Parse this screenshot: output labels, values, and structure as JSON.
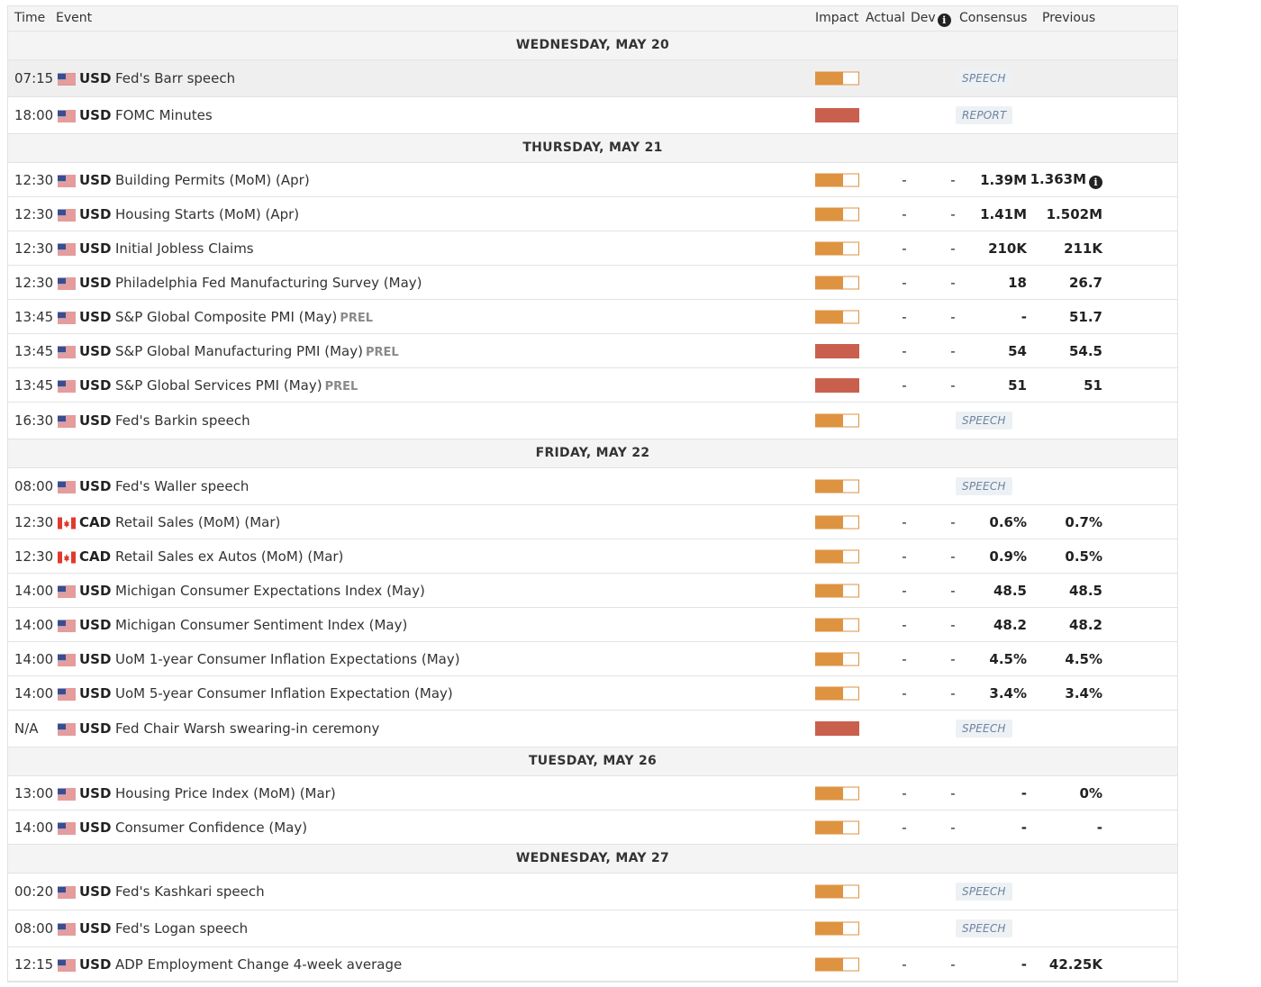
{
  "header": {
    "time": "Time",
    "event": "Event",
    "impact": "Impact",
    "actual": "Actual",
    "dev": "Dev",
    "consensus": "Consensus",
    "previous": "Previous"
  },
  "days": [
    {
      "label": "WEDNESDAY, MAY 20",
      "events": [
        {
          "time": "07:15",
          "flag": "us",
          "currency": "USD",
          "name": "Fed's Barr speech",
          "impact": "medium",
          "badge": "SPEECH",
          "tall": true,
          "selected": true
        },
        {
          "time": "18:00",
          "flag": "us",
          "currency": "USD",
          "name": "FOMC Minutes",
          "impact": "high",
          "badge": "REPORT",
          "tall": true
        }
      ]
    },
    {
      "label": "THURSDAY, MAY 21",
      "events": [
        {
          "time": "12:30",
          "flag": "us",
          "currency": "USD",
          "name": "Building Permits (MoM) (Apr)",
          "impact": "medium",
          "actual": "-",
          "dev": "-",
          "consensus": "1.39M",
          "previous": "1.363M",
          "prev_info": true
        },
        {
          "time": "12:30",
          "flag": "us",
          "currency": "USD",
          "name": "Housing Starts (MoM) (Apr)",
          "impact": "medium",
          "actual": "-",
          "dev": "-",
          "consensus": "1.41M",
          "previous": "1.502M"
        },
        {
          "time": "12:30",
          "flag": "us",
          "currency": "USD",
          "name": "Initial Jobless Claims",
          "impact": "medium",
          "actual": "-",
          "dev": "-",
          "consensus": "210K",
          "previous": "211K"
        },
        {
          "time": "12:30",
          "flag": "us",
          "currency": "USD",
          "name": "Philadelphia Fed Manufacturing Survey (May)",
          "impact": "medium",
          "actual": "-",
          "dev": "-",
          "consensus": "18",
          "previous": "26.7"
        },
        {
          "time": "13:45",
          "flag": "us",
          "currency": "USD",
          "name": "S&P Global Composite PMI (May)",
          "prel": "PREL",
          "impact": "medium",
          "actual": "-",
          "dev": "-",
          "consensus": "-",
          "previous": "51.7"
        },
        {
          "time": "13:45",
          "flag": "us",
          "currency": "USD",
          "name": "S&P Global Manufacturing PMI (May)",
          "prel": "PREL",
          "impact": "high",
          "actual": "-",
          "dev": "-",
          "consensus": "54",
          "previous": "54.5"
        },
        {
          "time": "13:45",
          "flag": "us",
          "currency": "USD",
          "name": "S&P Global Services PMI (May)",
          "prel": "PREL",
          "impact": "high",
          "actual": "-",
          "dev": "-",
          "consensus": "51",
          "previous": "51"
        },
        {
          "time": "16:30",
          "flag": "us",
          "currency": "USD",
          "name": "Fed's Barkin speech",
          "impact": "medium",
          "badge": "SPEECH",
          "tall": true
        }
      ]
    },
    {
      "label": "FRIDAY, MAY 22",
      "events": [
        {
          "time": "08:00",
          "flag": "us",
          "currency": "USD",
          "name": "Fed's Waller speech",
          "impact": "medium",
          "badge": "SPEECH",
          "tall": true
        },
        {
          "time": "12:30",
          "flag": "ca",
          "currency": "CAD",
          "name": "Retail Sales (MoM) (Mar)",
          "impact": "medium",
          "actual": "-",
          "dev": "-",
          "consensus": "0.6%",
          "previous": "0.7%"
        },
        {
          "time": "12:30",
          "flag": "ca",
          "currency": "CAD",
          "name": "Retail Sales ex Autos (MoM) (Mar)",
          "impact": "medium",
          "actual": "-",
          "dev": "-",
          "consensus": "0.9%",
          "previous": "0.5%"
        },
        {
          "time": "14:00",
          "flag": "us",
          "currency": "USD",
          "name": "Michigan Consumer Expectations Index (May)",
          "impact": "medium",
          "actual": "-",
          "dev": "-",
          "consensus": "48.5",
          "previous": "48.5"
        },
        {
          "time": "14:00",
          "flag": "us",
          "currency": "USD",
          "name": "Michigan Consumer Sentiment Index (May)",
          "impact": "medium",
          "actual": "-",
          "dev": "-",
          "consensus": "48.2",
          "previous": "48.2"
        },
        {
          "time": "14:00",
          "flag": "us",
          "currency": "USD",
          "name": "UoM 1-year Consumer Inflation Expectations (May)",
          "impact": "medium",
          "actual": "-",
          "dev": "-",
          "consensus": "4.5%",
          "previous": "4.5%"
        },
        {
          "time": "14:00",
          "flag": "us",
          "currency": "USD",
          "name": "UoM 5-year Consumer Inflation Expectation (May)",
          "impact": "medium",
          "actual": "-",
          "dev": "-",
          "consensus": "3.4%",
          "previous": "3.4%"
        },
        {
          "time": "N/A",
          "flag": "us",
          "currency": "USD",
          "name": "Fed Chair Warsh swearing-in ceremony",
          "impact": "high",
          "badge": "SPEECH",
          "tall": true
        }
      ]
    },
    {
      "label": "TUESDAY, MAY 26",
      "events": [
        {
          "time": "13:00",
          "flag": "us",
          "currency": "USD",
          "name": "Housing Price Index (MoM) (Mar)",
          "impact": "medium",
          "actual": "-",
          "dev": "-",
          "consensus": "-",
          "previous": "0%"
        },
        {
          "time": "14:00",
          "flag": "us",
          "currency": "USD",
          "name": "Consumer Confidence (May)",
          "impact": "medium",
          "actual": "-",
          "dev": "-",
          "consensus": "-",
          "previous": "-"
        }
      ]
    },
    {
      "label": "WEDNESDAY, MAY 27",
      "events": [
        {
          "time": "00:20",
          "flag": "us",
          "currency": "USD",
          "name": "Fed's Kashkari speech",
          "impact": "medium",
          "badge": "SPEECH",
          "tall": true
        },
        {
          "time": "08:00",
          "flag": "us",
          "currency": "USD",
          "name": "Fed's Logan speech",
          "impact": "medium",
          "badge": "SPEECH",
          "tall": true
        },
        {
          "time": "12:15",
          "flag": "us",
          "currency": "USD",
          "name": "ADP Employment Change 4-week average",
          "impact": "medium",
          "actual": "-",
          "dev": "-",
          "consensus": "-",
          "previous": "42.25K"
        }
      ]
    }
  ],
  "icons": {
    "info": "info-icon",
    "flag_us": "us-flag-icon",
    "flag_ca": "ca-flag-icon"
  },
  "colors": {
    "impact_medium": "#de9341",
    "impact_high": "#c9604e",
    "badge_text": "#6b84a0",
    "badge_bg": "#eef1f4",
    "header_bg": "#f4f4f4"
  }
}
